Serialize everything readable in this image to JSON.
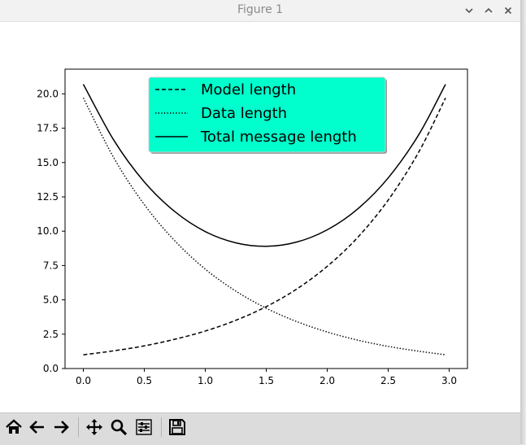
{
  "window": {
    "title": "Figure 1",
    "controls": [
      "chevron-down-icon",
      "chevron-up-icon",
      "close-icon"
    ]
  },
  "toolbar": {
    "buttons": [
      {
        "name": "home-button",
        "icon": "home-icon"
      },
      {
        "name": "back-button",
        "icon": "arrow-left-icon"
      },
      {
        "name": "forward-button",
        "icon": "arrow-right-icon"
      },
      {
        "name": "pan-button",
        "icon": "move-icon"
      },
      {
        "name": "zoom-button",
        "icon": "magnifier-icon"
      },
      {
        "name": "configure-subplots-button",
        "icon": "sliders-icon"
      },
      {
        "name": "save-button",
        "icon": "floppy-icon"
      }
    ]
  },
  "chart_data": {
    "type": "line",
    "xlim": [
      -0.15,
      3.15
    ],
    "ylim": [
      0,
      21.8
    ],
    "x_ticks": [
      "0.0",
      "0.5",
      "1.0",
      "1.5",
      "2.0",
      "2.5",
      "3.0"
    ],
    "x_tick_values": [
      0,
      0.5,
      1.0,
      1.5,
      2.0,
      2.5,
      3.0
    ],
    "y_ticks": [
      "0.0",
      "2.5",
      "5.0",
      "7.5",
      "10.0",
      "12.5",
      "15.0",
      "17.5",
      "20.0"
    ],
    "y_tick_values": [
      0,
      2.5,
      5,
      7.5,
      10,
      12.5,
      15,
      17.5,
      20
    ],
    "grid": false,
    "legend_position": "top-center",
    "legend_bg": "#00ffcc",
    "series": [
      {
        "name": "Model length",
        "style": "dashed",
        "x": [
          0,
          0.25,
          0.5,
          0.75,
          1.0,
          1.25,
          1.5,
          1.75,
          2.0,
          2.25,
          2.5,
          2.75,
          2.97
        ],
        "y": [
          1.0,
          1.29,
          1.65,
          2.13,
          2.73,
          3.51,
          4.51,
          5.79,
          7.44,
          9.55,
          12.27,
          15.76,
          19.7
        ]
      },
      {
        "name": "Data length",
        "style": "dotted",
        "x": [
          0,
          0.25,
          0.5,
          0.75,
          1.0,
          1.25,
          1.5,
          1.75,
          2.0,
          2.25,
          2.5,
          2.75,
          2.97
        ],
        "y": [
          19.7,
          15.34,
          11.94,
          9.3,
          7.24,
          5.64,
          4.39,
          3.42,
          2.66,
          2.07,
          1.61,
          1.26,
          1.0
        ]
      },
      {
        "name": "Total message length",
        "style": "solid",
        "x": [
          0,
          0.25,
          0.5,
          0.75,
          1.0,
          1.25,
          1.5,
          1.75,
          2.0,
          2.25,
          2.5,
          2.75,
          2.97
        ],
        "y": [
          20.7,
          16.63,
          13.59,
          11.43,
          9.97,
          9.15,
          8.9,
          9.21,
          10.1,
          11.62,
          13.88,
          17.02,
          20.7
        ]
      }
    ]
  }
}
